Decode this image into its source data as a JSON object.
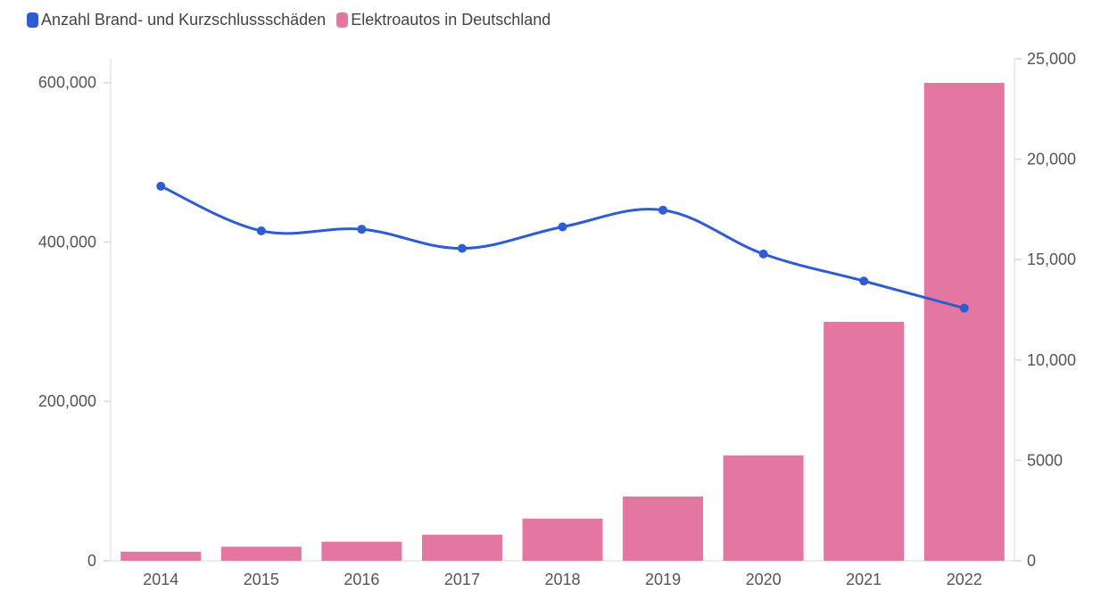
{
  "chart_data": {
    "type": "bar+line",
    "categories": [
      "2014",
      "2015",
      "2016",
      "2017",
      "2018",
      "2019",
      "2020",
      "2021",
      "2022"
    ],
    "series": [
      {
        "name": "Anzahl Brand- und Kurzschlussschäden",
        "type": "line",
        "axis": "left",
        "color": "#2f5bd3",
        "values": [
          470000,
          414000,
          416000,
          392000,
          419000,
          440000,
          385000,
          351000,
          317000
        ]
      },
      {
        "name": "Elektroautos in Deutschland",
        "type": "bar",
        "axis": "right",
        "color": "#e477a2",
        "values": [
          450,
          700,
          950,
          1300,
          2100,
          3200,
          5250,
          11900,
          23800
        ]
      }
    ],
    "y_left": {
      "ylim": [
        0,
        650000
      ],
      "ticks": [
        0,
        200000,
        400000,
        600000
      ],
      "tick_labels": [
        "0",
        "200,000",
        "400,000",
        "600,000"
      ]
    },
    "y_right": {
      "ylim": [
        0,
        25000
      ],
      "ticks": [
        0,
        5000,
        10000,
        15000,
        20000,
        25000
      ],
      "tick_labels": [
        "0",
        "5000",
        "10,000",
        "15,000",
        "20,000",
        "25,000"
      ]
    },
    "grid": false,
    "legend_position": "top-left"
  }
}
